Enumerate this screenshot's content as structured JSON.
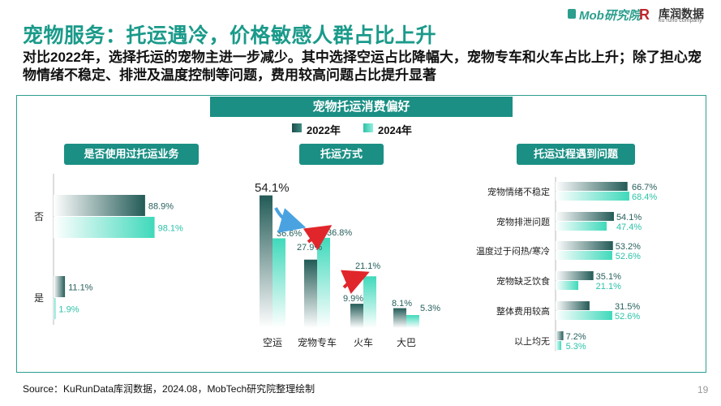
{
  "title": "宠物服务：托运遇冷，价格敏感人群占比上升",
  "subtitle": "对比2022年，选择托运的宠物主进一步减少。其中选择空运占比降幅大，宠物专车和火车占比上升；除了担心宠物情绪不稳定、排泄及温度控制等问题，费用较高问题占比提升显著",
  "logos": {
    "mob": "Mob研究院",
    "kurun_mark": "R",
    "kurun": "库润数据",
    "kurun_sub": "ku runo company"
  },
  "banner": "宠物托运消费偏好",
  "legend": [
    "2022年",
    "2024年"
  ],
  "colors": {
    "y2022": "#26605c",
    "y2024": "#4ddcbf",
    "accent": "#1b8f84",
    "label2024": "#2cc2a8"
  },
  "source": "Source：KuRunData库润数据，2024.08，MobTech研究院整理绘制",
  "page_number": "19",
  "chart_data": [
    {
      "type": "bar",
      "orientation": "horizontal",
      "title": "是否使用过托运业务",
      "categories": [
        "否",
        "是"
      ],
      "series": [
        {
          "name": "2022年",
          "values": [
            88.9,
            11.1
          ],
          "labels": [
            "88.9%",
            "11.1%"
          ]
        },
        {
          "name": "2024年",
          "values": [
            98.1,
            1.9
          ],
          "labels": [
            "98.1%",
            "1.9%"
          ]
        }
      ]
    },
    {
      "type": "bar",
      "orientation": "vertical",
      "title": "托运方式",
      "categories": [
        "空运",
        "宠物专车",
        "火车",
        "大巴"
      ],
      "series": [
        {
          "name": "2022年",
          "values": [
            54.1,
            27.9,
            9.9,
            8.1
          ],
          "labels": [
            "54.1%",
            "27.9%",
            "9.9%",
            "8.1%"
          ]
        },
        {
          "name": "2024年",
          "values": [
            36.6,
            36.8,
            21.1,
            5.3
          ],
          "labels": [
            "36.6%",
            "36.8%",
            "21.1%",
            "5.3%"
          ]
        }
      ]
    },
    {
      "type": "bar",
      "orientation": "horizontal",
      "title": "托运过程遇到问题",
      "categories": [
        "宠物情绪不稳定",
        "宠物排泄问题",
        "温度过于闷热/寒冷",
        "宠物缺乏饮食",
        "整体费用较高",
        "以上均无"
      ],
      "series": [
        {
          "name": "2022年",
          "values": [
            66.7,
            54.1,
            53.2,
            35.1,
            31.5,
            7.2
          ],
          "labels": [
            "66.7%",
            "54.1%",
            "53.2%",
            "35.1%",
            "31.5%",
            "7.2%"
          ]
        },
        {
          "name": "2024年",
          "values": [
            68.4,
            47.4,
            52.6,
            21.1,
            52.6,
            5.3
          ],
          "labels": [
            "68.4%",
            "47.4%",
            "52.6%",
            "21.1%",
            "52.6%",
            "5.3%"
          ]
        }
      ]
    }
  ]
}
